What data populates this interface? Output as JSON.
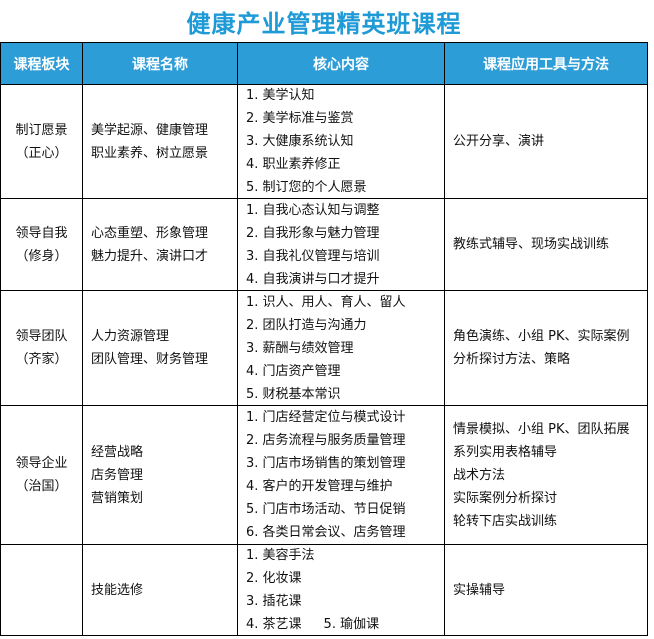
{
  "title": "健康产业管理精英班课程",
  "headers": [
    "课程板块",
    "课程名称",
    "核心内容",
    "课程应用工具与方法"
  ],
  "rows": [
    {
      "module": [
        "制订愿景",
        "（正心）"
      ],
      "course": [
        "美学起源、健康管理",
        "职业素养、树立愿景"
      ],
      "content": [
        [
          "1. 美学认知"
        ],
        [
          "2. 美学标准与鉴赏"
        ],
        [
          "3. 大健康系统认知"
        ],
        [
          "4. 职业素养修正"
        ],
        [
          "5. 制订您的个人愿景"
        ]
      ],
      "methods": [
        "公开分享、演讲"
      ]
    },
    {
      "module": [
        "领导自我",
        "（修身）"
      ],
      "course": [
        "心态重塑、形象管理",
        "魅力提升、演讲口才"
      ],
      "content": [
        [
          "1. 自我心态认知与调整"
        ],
        [
          "2. 自我形象与魅力管理"
        ],
        [
          "3. 自我礼仪管理与培训"
        ],
        [
          "4. 自我演讲与口才提升"
        ]
      ],
      "methods": [
        "教练式辅导、现场实战训练"
      ]
    },
    {
      "module": [
        "领导团队",
        "（齐家）"
      ],
      "course": [
        "人力资源管理",
        "团队管理、财务管理"
      ],
      "content": [
        [
          "1. 识人、用人、育人、留人"
        ],
        [
          "2. 团队打造与沟通力"
        ],
        [
          "3. 薪酬与绩效管理"
        ],
        [
          "4. 门店资产管理"
        ],
        [
          "5. 财税基本常识"
        ]
      ],
      "methods": [
        "角色演练、小组 PK、实际案例",
        "分析探讨方法、策略"
      ]
    },
    {
      "module": [
        "领导企业",
        "（治国）"
      ],
      "course": [
        "经营战略",
        "店务管理",
        "营销策划"
      ],
      "content": [
        [
          "1. 门店经营定位与模式设计"
        ],
        [
          "2. 店务流程与服务质量管理"
        ],
        [
          "3. 门店市场销售的策划管理"
        ],
        [
          "4. 客户的开发管理与维护"
        ],
        [
          "5. 门店市场活动、节日促销"
        ],
        [
          "6. 各类日常会议、店务管理"
        ]
      ],
      "methods": [
        "情景模拟、小组 PK、团队拓展",
        "系列实用表格辅导",
        "战术方法",
        "实际案例分析探讨",
        "轮转下店实战训练"
      ]
    },
    {
      "module": [],
      "course": [
        "技能选修"
      ],
      "content": [
        [
          "1. 美容手法"
        ],
        [
          "2. 化妆课"
        ],
        [
          "3. 插花课"
        ],
        [
          "4. 茶艺课",
          "5. 瑜伽课"
        ]
      ],
      "methods": [
        "实操辅导"
      ]
    }
  ]
}
